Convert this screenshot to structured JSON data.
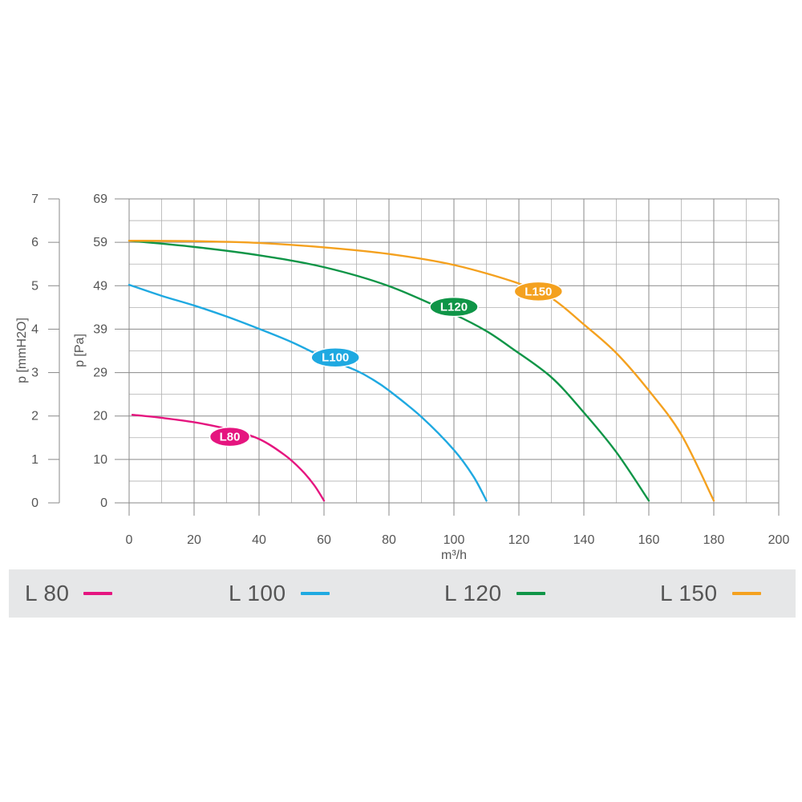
{
  "chart_data": {
    "type": "line",
    "xlabel": "m³/h",
    "ylabel_left": "p [mmH2O]",
    "ylabel_right": "p [Pa]",
    "xlim": [
      0,
      200
    ],
    "x_ticks": [
      "0",
      "20",
      "40",
      "60",
      "80",
      "100",
      "120",
      "140",
      "160",
      "180",
      "200"
    ],
    "y_ticks_mmH2O": [
      "0",
      "1",
      "2",
      "3",
      "4",
      "5",
      "6",
      "7"
    ],
    "y_ticks_Pa": [
      "0",
      "10",
      "20",
      "29",
      "39",
      "49",
      "59",
      "69"
    ],
    "ylim_Pa": [
      0,
      69
    ],
    "grid": true,
    "series": [
      {
        "name": "L80",
        "color": "#e5157f",
        "points": [
          [
            1,
            20
          ],
          [
            10,
            19.3
          ],
          [
            20,
            18.3
          ],
          [
            30,
            16.8
          ],
          [
            40,
            14.5
          ],
          [
            48,
            10.8
          ],
          [
            53,
            7.5
          ],
          [
            57,
            4
          ],
          [
            60,
            0.5
          ]
        ]
      },
      {
        "name": "L100",
        "color": "#1fa9e1",
        "points": [
          [
            0,
            49.5
          ],
          [
            10,
            47
          ],
          [
            20,
            44.8
          ],
          [
            30,
            42.3
          ],
          [
            40,
            39.5
          ],
          [
            50,
            36.5
          ],
          [
            60,
            33
          ],
          [
            70,
            30
          ],
          [
            75,
            28
          ],
          [
            80,
            25.5
          ],
          [
            90,
            19.5
          ],
          [
            100,
            12
          ],
          [
            106,
            6
          ],
          [
            110,
            0.5
          ]
        ]
      },
      {
        "name": "L120",
        "color": "#0f9547",
        "points": [
          [
            0,
            59.5
          ],
          [
            20,
            58.1
          ],
          [
            40,
            56.2
          ],
          [
            60,
            53.5
          ],
          [
            80,
            49.2
          ],
          [
            100,
            42.8
          ],
          [
            110,
            39
          ],
          [
            118,
            35
          ],
          [
            130,
            28.5
          ],
          [
            140,
            20.5
          ],
          [
            150,
            11.5
          ],
          [
            160,
            0.5
          ]
        ]
      },
      {
        "name": "L150",
        "color": "#f4a11f",
        "points": [
          [
            0,
            59.5
          ],
          [
            20,
            59.4
          ],
          [
            40,
            59
          ],
          [
            60,
            58
          ],
          [
            80,
            56.5
          ],
          [
            100,
            54
          ],
          [
            120,
            49.8
          ],
          [
            130,
            46.5
          ],
          [
            140,
            40.5
          ],
          [
            150,
            34
          ],
          [
            160,
            25.5
          ],
          [
            170,
            15.5
          ],
          [
            180,
            0.5
          ]
        ]
      }
    ],
    "badges": [
      {
        "text": "L80",
        "color": "#e5157f",
        "x": 31,
        "y": 15
      },
      {
        "text": "L100",
        "color": "#1fa9e1",
        "x": 63.5,
        "y": 33
      },
      {
        "text": "L120",
        "color": "#0f9547",
        "x": 100,
        "y": 44.5
      },
      {
        "text": "L150",
        "color": "#f4a11f",
        "x": 126,
        "y": 48
      }
    ]
  },
  "legend": [
    {
      "label": "L 80",
      "color": "#e5157f"
    },
    {
      "label": "L 100",
      "color": "#1fa9e1"
    },
    {
      "label": "L 120",
      "color": "#0f9547"
    },
    {
      "label": "L 150",
      "color": "#f4a11f"
    }
  ]
}
